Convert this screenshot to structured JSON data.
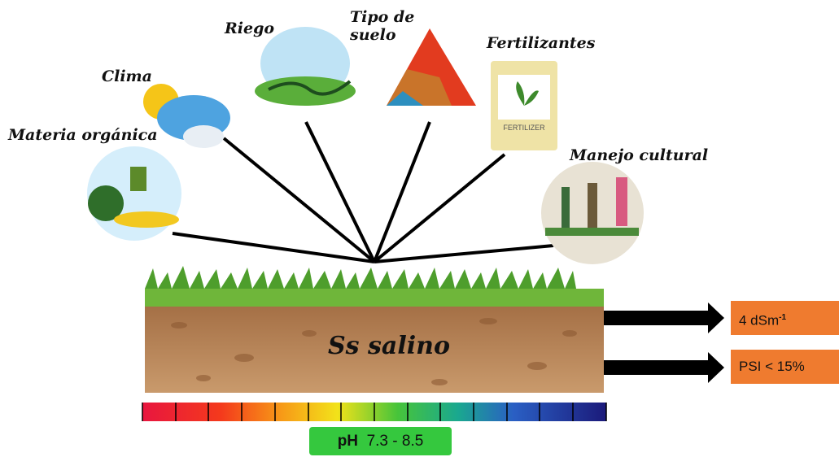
{
  "factors": [
    {
      "label": "Clima"
    },
    {
      "label": "Riego"
    },
    {
      "label": "Tipo de suelo"
    },
    {
      "label": "Fertilizantes"
    },
    {
      "label": "Materia orgánica"
    },
    {
      "label": "Manejo cultural"
    }
  ],
  "soil": {
    "label": "Ss salino"
  },
  "outputs": [
    {
      "text": "4 dSm",
      "superscript": "-1"
    },
    {
      "text": "PSI < 15%"
    }
  ],
  "ph": {
    "label": "pH",
    "range": "7.3 - 8.5"
  },
  "fertilizer_bag": {
    "label": "FERTILIZER"
  }
}
